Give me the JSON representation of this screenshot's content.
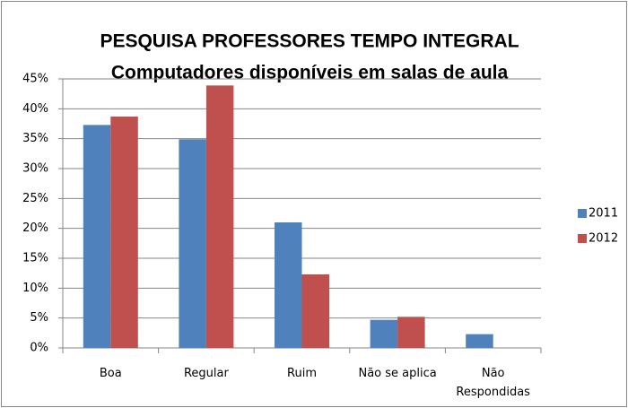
{
  "chart_data": {
    "type": "bar",
    "title": "PESQUISA PROFESSORES TEMPO INTEGRAL",
    "subtitle": "Computadores disponíveis em salas de aula",
    "categories": [
      "Boa",
      "Regular",
      "Ruim",
      "Não se aplica",
      "Não\nRespondidas"
    ],
    "series": [
      {
        "name": "2011",
        "color": "#4f81bd",
        "values": [
          37.3,
          34.9,
          21,
          4.7,
          2.3
        ]
      },
      {
        "name": "2012",
        "color": "#c0504d",
        "values": [
          38.7,
          43.9,
          12.3,
          5.2,
          0
        ]
      }
    ],
    "ylim": [
      0,
      45
    ],
    "yticks": [
      {
        "value": 0,
        "label": "0%"
      },
      {
        "value": 5,
        "label": "5%"
      },
      {
        "value": 10,
        "label": "10%"
      },
      {
        "value": 15,
        "label": "15%"
      },
      {
        "value": 20,
        "label": "20%"
      },
      {
        "value": 25,
        "label": "25%"
      },
      {
        "value": 30,
        "label": "30%"
      },
      {
        "value": 35,
        "label": "35%"
      },
      {
        "value": 40,
        "label": "40%"
      },
      {
        "value": 45,
        "label": "45%"
      }
    ],
    "grid": true,
    "legend": "right"
  }
}
